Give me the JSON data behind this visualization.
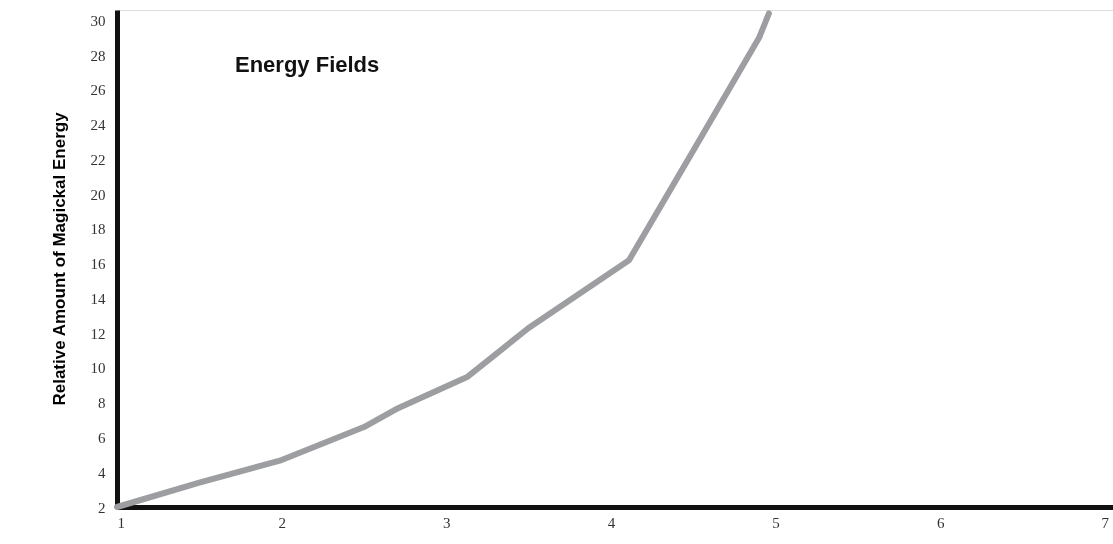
{
  "chart_data": {
    "type": "line",
    "title": "Energy Fields",
    "ylabel": "Relative Amount of Magickal Energy",
    "series": [
      {
        "color": "#9d9ea1",
        "x": [
          1,
          1.5,
          2,
          2.5,
          2.71,
          3.13,
          3.5,
          4.11,
          4.5,
          4.9,
          4.96
        ],
        "values": [
          2,
          3.4,
          4.7,
          6.6,
          7.7,
          9.5,
          12.3,
          16.2,
          22.5,
          29.0,
          30.4
        ]
      }
    ],
    "xlim": [
      1,
      7.05
    ],
    "ylim": [
      2,
      30.6
    ],
    "xticks": [
      1,
      2,
      3,
      4,
      5,
      6,
      7
    ],
    "yticks": [
      2,
      4,
      6,
      8,
      10,
      12,
      14,
      16,
      18,
      20,
      22,
      24,
      26,
      28,
      30
    ],
    "grid": false,
    "marker": "none",
    "line_style": "solid"
  }
}
